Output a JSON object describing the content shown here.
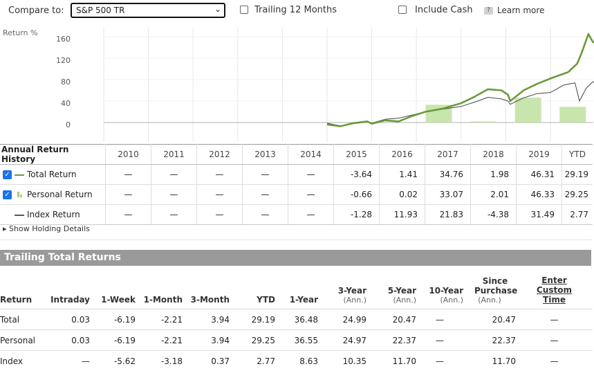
{
  "toolbar": {
    "compare_label": "Compare to:",
    "compare_value": "S&P 500 TR",
    "trailing_label": "Trailing 12 Months",
    "include_cash_label": "Include Cash",
    "help_glyph": "?",
    "learn_more": "Learn more"
  },
  "chart": {
    "ylabel": "Return %",
    "yticks": [
      "160",
      "120",
      "80",
      "40",
      "0"
    ]
  },
  "chart_data": {
    "type": "line",
    "ylabel": "Return %",
    "ylim": [
      0,
      180
    ],
    "yticks": [
      0,
      40,
      80,
      120,
      160
    ],
    "categories": [
      "2010",
      "2011",
      "2012",
      "2013",
      "2014",
      "2015",
      "2016",
      "2017",
      "2018",
      "2019",
      "YTD"
    ],
    "annual_bars": {
      "2017": 33.07,
      "2018": 2.01,
      "2019": 46.33,
      "YTD": 29.25
    },
    "series": [
      {
        "name": "Total Return",
        "color": "#6a9a3a",
        "points": [
          [
            5.0,
            -3.6
          ],
          [
            5.3,
            -7
          ],
          [
            5.6,
            -1
          ],
          [
            5.9,
            2
          ],
          [
            6.0,
            -2.2
          ],
          [
            6.3,
            4
          ],
          [
            6.6,
            2
          ],
          [
            6.9,
            12
          ],
          [
            7.2,
            20
          ],
          [
            7.6,
            26
          ],
          [
            8.0,
            36
          ],
          [
            8.3,
            48
          ],
          [
            8.6,
            62
          ],
          [
            8.9,
            60
          ],
          [
            9.05,
            52
          ],
          [
            9.1,
            40
          ],
          [
            9.4,
            60
          ],
          [
            9.7,
            72
          ],
          [
            10.0,
            82
          ],
          [
            10.4,
            94
          ],
          [
            10.6,
            110
          ],
          [
            10.7,
            130
          ],
          [
            10.85,
            165
          ],
          [
            10.95,
            150
          ],
          [
            11.05,
            148
          ]
        ]
      },
      {
        "name": "Index Return",
        "color": "#444444",
        "points": [
          [
            5.0,
            -1.3
          ],
          [
            5.3,
            -6
          ],
          [
            5.6,
            -2
          ],
          [
            5.9,
            1
          ],
          [
            6.0,
            -1.2
          ],
          [
            6.3,
            6
          ],
          [
            6.6,
            8
          ],
          [
            6.9,
            14
          ],
          [
            7.2,
            20
          ],
          [
            7.6,
            25
          ],
          [
            8.0,
            30
          ],
          [
            8.3,
            38
          ],
          [
            8.6,
            47
          ],
          [
            8.9,
            44
          ],
          [
            9.05,
            40
          ],
          [
            9.1,
            34
          ],
          [
            9.4,
            46
          ],
          [
            9.7,
            54
          ],
          [
            10.0,
            56
          ],
          [
            10.3,
            70
          ],
          [
            10.55,
            74
          ],
          [
            10.65,
            40
          ],
          [
            10.8,
            64
          ],
          [
            10.95,
            76
          ],
          [
            11.05,
            72
          ]
        ]
      }
    ]
  },
  "annual": {
    "title": "Annual Return History",
    "years": [
      "2010",
      "2011",
      "2012",
      "2013",
      "2014",
      "2015",
      "2016",
      "2017",
      "2018",
      "2019",
      "YTD"
    ],
    "rows": [
      {
        "label": "Total Return",
        "checked": "✓",
        "color": "#6a9a3a",
        "values": [
          "—",
          "—",
          "—",
          "—",
          "—",
          "-3.64",
          "1.41",
          "34.76",
          "1.98",
          "46.31",
          "29.19"
        ]
      },
      {
        "label": "Personal Return",
        "checked": "✓",
        "color": "#a6d07a",
        "values": [
          "—",
          "—",
          "—",
          "—",
          "—",
          "-0.66",
          "0.02",
          "33.07",
          "2.01",
          "46.33",
          "29.25"
        ]
      },
      {
        "label": "Index Return",
        "checked": "",
        "color": "#555555",
        "values": [
          "—",
          "—",
          "—",
          "—",
          "—",
          "-1.28",
          "11.93",
          "21.83",
          "-4.38",
          "31.49",
          "2.77"
        ]
      }
    ],
    "show_details": "▸ Show Holding Details"
  },
  "trailing": {
    "title": "Trailing Total Returns",
    "headers": [
      {
        "label": "Return",
        "sub": ""
      },
      {
        "label": "Intraday",
        "sub": ""
      },
      {
        "label": "1-Week",
        "sub": ""
      },
      {
        "label": "1-Month",
        "sub": ""
      },
      {
        "label": "3-Month",
        "sub": ""
      },
      {
        "label": "YTD",
        "sub": ""
      },
      {
        "label": "1-Year",
        "sub": ""
      },
      {
        "label": "3-Year",
        "sub": "(Ann.)"
      },
      {
        "label": "5-Year",
        "sub": "(Ann.)"
      },
      {
        "label": "10-Year",
        "sub": "(Ann.)"
      },
      {
        "label": "Since Purchase",
        "sub": "(Ann.)"
      },
      {
        "label": "Enter Custom Time",
        "sub": ""
      }
    ],
    "rows": [
      [
        "Total",
        "0.03",
        "-6.19",
        "-2.21",
        "3.94",
        "29.19",
        "36.48",
        "24.99",
        "20.47",
        "—",
        "20.47",
        "—"
      ],
      [
        "Personal",
        "0.03",
        "-6.19",
        "-2.21",
        "3.94",
        "29.25",
        "36.55",
        "24.97",
        "22.37",
        "—",
        "22.37",
        "—"
      ],
      [
        "Index",
        "—",
        "-5.62",
        "-3.18",
        "0.37",
        "2.77",
        "8.63",
        "10.35",
        "11.70",
        "—",
        "11.70",
        "—"
      ]
    ]
  }
}
